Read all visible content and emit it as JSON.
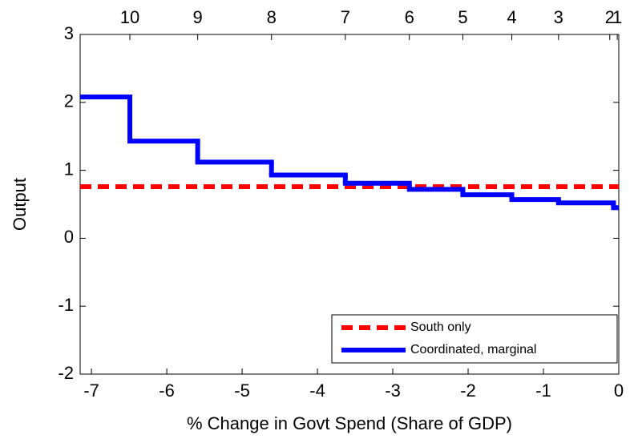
{
  "chart_data": {
    "type": "line",
    "xlabel": "% Change in Govt Spend (Share of GDP)",
    "ylabel": "Output",
    "xlim": [
      -7.15,
      0
    ],
    "ylim": [
      -2,
      3
    ],
    "xticks": [
      -7,
      -6,
      -5,
      -4,
      -3,
      -2,
      -1,
      0
    ],
    "yticks": [
      -2,
      -1,
      0,
      1,
      2,
      3
    ],
    "x2ticks": [
      {
        "value": -6.49,
        "label": "10"
      },
      {
        "value": -5.59,
        "label": "9"
      },
      {
        "value": -4.61,
        "label": "8"
      },
      {
        "value": -3.63,
        "label": "7"
      },
      {
        "value": -2.78,
        "label": "6"
      },
      {
        "value": -2.07,
        "label": "5"
      },
      {
        "value": -1.42,
        "label": "4"
      },
      {
        "value": -0.8,
        "label": "3"
      },
      {
        "value": -0.12,
        "label": "2"
      },
      {
        "value": -0.02,
        "label": "1"
      }
    ],
    "grid": false,
    "legend": "lower right",
    "series": [
      {
        "name": "South only",
        "color": "#ff0000",
        "dash": true,
        "step": false,
        "x": [
          -7.15,
          0
        ],
        "values": [
          0.76,
          0.76
        ]
      },
      {
        "name": "Coordinated, marginal",
        "color": "#0000ff",
        "dash": false,
        "step": true,
        "x": [
          -7.15,
          -6.49,
          -5.59,
          -4.61,
          -3.63,
          -2.78,
          -2.07,
          -1.42,
          -0.8,
          -0.07,
          0
        ],
        "values": [
          2.08,
          1.43,
          1.12,
          0.93,
          0.81,
          0.72,
          0.64,
          0.57,
          0.52,
          0.45,
          0.45
        ]
      }
    ]
  }
}
